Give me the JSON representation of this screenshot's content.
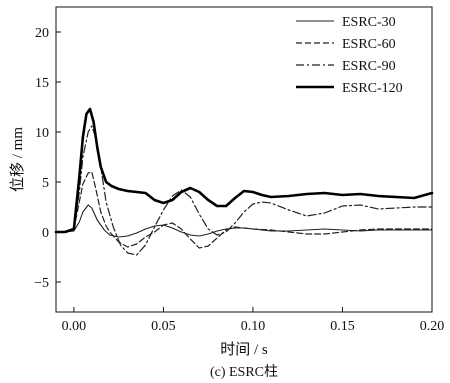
{
  "chart_data": {
    "type": "line",
    "title": "",
    "caption": "(c) ESRC柱",
    "xlabel": "时间 / s",
    "ylabel": "位移 / mm",
    "xlim": [
      -0.01,
      0.2
    ],
    "ylim": [
      -8,
      22.5
    ],
    "x_ticks": [
      0.0,
      0.05,
      0.1,
      0.15,
      0.2
    ],
    "x_tick_labels": [
      "0.00",
      "0.05",
      "0.10",
      "0.15",
      "0.20"
    ],
    "y_ticks": [
      -5,
      0,
      5,
      10,
      15,
      20
    ],
    "y_tick_labels": [
      "−5",
      "0",
      "5",
      "10",
      "15",
      "20"
    ],
    "grid": false,
    "legend_position": "top-right",
    "series": [
      {
        "name": "ESRC-30",
        "style": "solid-thin",
        "color": "#222222",
        "x": [
          -0.01,
          -0.005,
          0.0,
          0.003,
          0.005,
          0.008,
          0.01,
          0.013,
          0.017,
          0.02,
          0.025,
          0.03,
          0.035,
          0.04,
          0.045,
          0.05,
          0.055,
          0.06,
          0.065,
          0.07,
          0.075,
          0.08,
          0.085,
          0.09,
          0.095,
          0.1,
          0.105,
          0.11,
          0.12,
          0.13,
          0.14,
          0.15,
          0.16,
          0.17,
          0.18,
          0.19,
          0.2
        ],
        "y": [
          0.0,
          0.0,
          0.1,
          1.0,
          2.0,
          2.7,
          2.4,
          1.2,
          0.2,
          -0.3,
          -0.5,
          -0.4,
          -0.1,
          0.3,
          0.6,
          0.7,
          0.4,
          0.0,
          -0.3,
          -0.4,
          -0.2,
          0.1,
          0.3,
          0.4,
          0.4,
          0.3,
          0.2,
          0.1,
          0.1,
          0.2,
          0.3,
          0.2,
          0.1,
          0.2,
          0.2,
          0.2,
          0.2
        ]
      },
      {
        "name": "ESRC-60",
        "style": "dashed",
        "color": "#222222",
        "x": [
          -0.01,
          -0.005,
          0.0,
          0.003,
          0.005,
          0.008,
          0.01,
          0.012,
          0.015,
          0.018,
          0.02,
          0.025,
          0.03,
          0.035,
          0.04,
          0.045,
          0.05,
          0.055,
          0.06,
          0.065,
          0.07,
          0.075,
          0.08,
          0.085,
          0.09,
          0.1,
          0.11,
          0.12,
          0.13,
          0.14,
          0.15,
          0.16,
          0.17,
          0.18,
          0.19,
          0.2
        ],
        "y": [
          0.0,
          0.0,
          0.3,
          3.0,
          4.8,
          5.9,
          6.0,
          4.5,
          2.0,
          0.6,
          0.0,
          -1.0,
          -1.5,
          -1.2,
          -0.5,
          0.0,
          0.7,
          0.9,
          0.3,
          -0.7,
          -1.6,
          -1.4,
          -0.6,
          0.2,
          0.5,
          0.3,
          0.2,
          0.0,
          -0.2,
          -0.2,
          0.0,
          0.2,
          0.3,
          0.3,
          0.3,
          0.3
        ]
      },
      {
        "name": "ESRC-90",
        "style": "dash-dot",
        "color": "#222222",
        "x": [
          -0.01,
          -0.005,
          0.0,
          0.003,
          0.005,
          0.008,
          0.01,
          0.012,
          0.015,
          0.018,
          0.022,
          0.026,
          0.03,
          0.035,
          0.04,
          0.045,
          0.05,
          0.055,
          0.06,
          0.065,
          0.07,
          0.075,
          0.08,
          0.085,
          0.09,
          0.095,
          0.1,
          0.105,
          0.11,
          0.12,
          0.13,
          0.14,
          0.15,
          0.16,
          0.17,
          0.18,
          0.19,
          0.2
        ],
        "y": [
          0.0,
          0.0,
          0.2,
          4.0,
          7.5,
          10.0,
          10.6,
          9.5,
          6.5,
          3.0,
          0.5,
          -1.3,
          -2.1,
          -2.3,
          -1.3,
          0.5,
          2.2,
          3.6,
          4.2,
          3.5,
          1.8,
          0.3,
          -0.3,
          0.0,
          0.9,
          2.0,
          2.8,
          3.0,
          2.9,
          2.2,
          1.6,
          1.9,
          2.6,
          2.7,
          2.3,
          2.4,
          2.5,
          2.5
        ]
      },
      {
        "name": "ESRC-120",
        "style": "solid-thick",
        "color": "#000000",
        "x": [
          -0.01,
          -0.005,
          0.0,
          0.003,
          0.005,
          0.007,
          0.009,
          0.011,
          0.013,
          0.015,
          0.018,
          0.021,
          0.025,
          0.03,
          0.035,
          0.04,
          0.045,
          0.05,
          0.055,
          0.06,
          0.065,
          0.07,
          0.075,
          0.08,
          0.085,
          0.09,
          0.095,
          0.1,
          0.105,
          0.11,
          0.12,
          0.13,
          0.14,
          0.15,
          0.16,
          0.17,
          0.18,
          0.19,
          0.2
        ],
        "y": [
          0.0,
          0.0,
          0.3,
          5.5,
          9.5,
          11.8,
          12.3,
          11.0,
          8.5,
          6.5,
          5.0,
          4.6,
          4.3,
          4.1,
          4.0,
          3.9,
          3.2,
          2.9,
          3.2,
          4.0,
          4.4,
          4.0,
          3.2,
          2.6,
          2.6,
          3.4,
          4.1,
          4.0,
          3.7,
          3.5,
          3.6,
          3.8,
          3.9,
          3.7,
          3.8,
          3.6,
          3.5,
          3.4,
          3.9
        ]
      }
    ]
  }
}
